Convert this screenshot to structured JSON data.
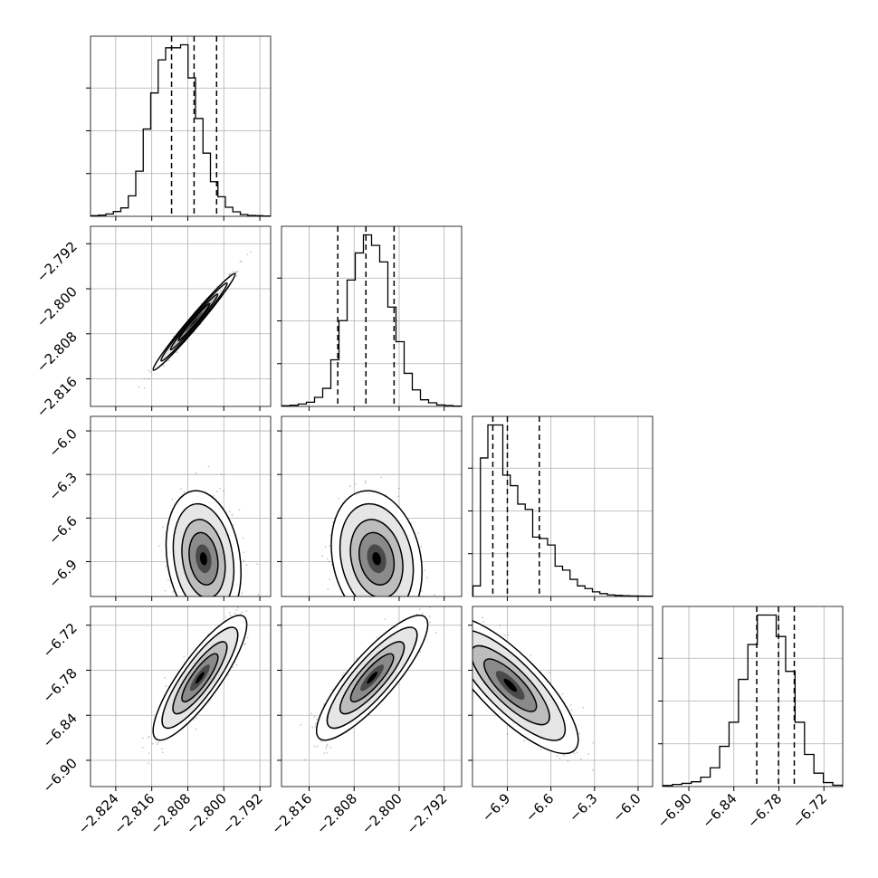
{
  "chart_data": {
    "type": "corner",
    "parameters": [
      {
        "ticks": [
          -2.824,
          -2.816,
          -2.808,
          -2.8,
          -2.792
        ],
        "tick_labels": [
          "−2.824",
          "−2.816",
          "−2.808",
          "−2.800",
          "−2.792"
        ],
        "range": [
          -2.8296,
          -2.7896
        ],
        "quantiles": [
          -2.8116,
          -2.8066,
          -2.8016
        ],
        "hist_counts": [
          2,
          4,
          8,
          16,
          28,
          68,
          150,
          290,
          410,
          520,
          560,
          560,
          570,
          460,
          325,
          210,
          115,
          65,
          30,
          15,
          6,
          3,
          2,
          1
        ]
      },
      {
        "ticks": [
          -2.816,
          -2.808,
          -2.8,
          -2.792
        ],
        "tick_labels": [
          "−2.816",
          "−2.808",
          "−2.800",
          "−2.792"
        ],
        "range": [
          -2.8209,
          -2.7889
        ],
        "quantiles": [
          -2.8109,
          -2.8059,
          -2.8009
        ],
        "hist_counts": [
          2,
          4,
          8,
          14,
          30,
          60,
          155,
          285,
          420,
          510,
          570,
          535,
          480,
          330,
          215,
          110,
          55,
          22,
          12,
          5,
          3,
          1
        ]
      },
      {
        "ticks": [
          -6.9,
          -6.6,
          -6.3,
          -6.0
        ],
        "tick_labels": [
          "−6.9",
          "−6.6",
          "−6.3",
          "−6.0"
        ],
        "range": [
          -7.14,
          -5.9
        ],
        "quantiles": [
          -7.0,
          -6.9,
          -6.68
        ],
        "hist_counts": [
          80,
          1050,
          1300,
          1300,
          920,
          840,
          700,
          660,
          450,
          440,
          390,
          230,
          200,
          130,
          80,
          60,
          35,
          22,
          12,
          8,
          6,
          4,
          3,
          2
        ]
      },
      {
        "ticks": [
          -6.9,
          -6.84,
          -6.78,
          -6.72
        ],
        "tick_labels": [
          "−6.90",
          "−6.84",
          "−6.78",
          "−6.72"
        ],
        "range": [
          -6.935,
          -6.695
        ],
        "quantiles": [
          -6.8095,
          -6.7805,
          -6.7595
        ],
        "hist_counts": [
          4,
          8,
          12,
          18,
          35,
          70,
          150,
          240,
          400,
          530,
          640,
          640,
          560,
          430,
          240,
          120,
          50,
          15,
          5
        ]
      }
    ],
    "pairs": [
      {
        "x": 0,
        "y": 1,
        "mean": [
          -2.8066,
          -2.8059
        ],
        "sd": [
          0.0035,
          0.0033
        ],
        "rho": 0.985
      },
      {
        "x": 0,
        "y": 2,
        "mean": [
          -2.8045,
          -6.88
        ],
        "sd": [
          0.0032,
          0.18
        ],
        "rho": -0.2
      },
      {
        "x": 1,
        "y": 2,
        "mean": [
          -2.804,
          -6.88
        ],
        "sd": [
          0.0031,
          0.18
        ],
        "rho": -0.2
      },
      {
        "x": 0,
        "y": 3,
        "mean": [
          -2.8053,
          -6.79
        ],
        "sd": [
          0.004,
          0.032
        ],
        "rho": 0.85
      },
      {
        "x": 1,
        "y": 3,
        "mean": [
          -2.8048,
          -6.79
        ],
        "sd": [
          0.0038,
          0.032
        ],
        "rho": 0.85
      },
      {
        "x": 2,
        "y": 3,
        "mean": [
          -6.88,
          -6.8
        ],
        "sd": [
          0.18,
          0.035
        ],
        "rho": -0.8
      }
    ],
    "grid": true,
    "title": "",
    "xlabel": "",
    "ylabel": ""
  }
}
